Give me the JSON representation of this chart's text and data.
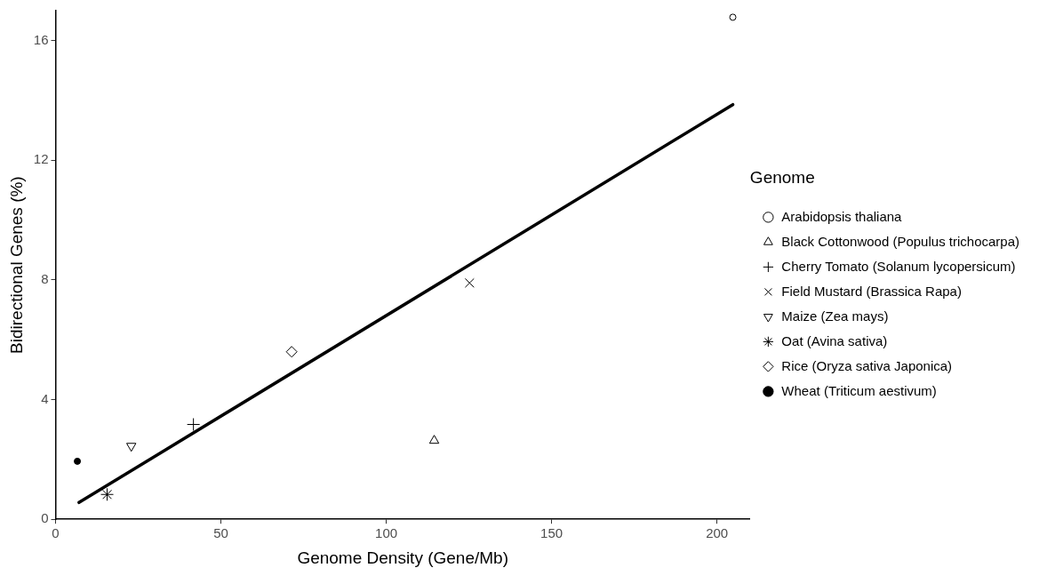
{
  "chart_data": {
    "type": "scatter",
    "xlabel": "Genome Density (Gene/Mb)",
    "ylabel": "Bidirectional Genes (%)",
    "legend_title": "Genome",
    "legend": "right",
    "grid": false,
    "xlim": [
      0,
      210
    ],
    "xticks": [
      0,
      50,
      100,
      150,
      200
    ],
    "ylim": [
      0,
      17
    ],
    "yticks": [
      0,
      4,
      8,
      12,
      16
    ],
    "series": [
      {
        "name": "Arabidopsis thaliana",
        "color": "#000000",
        "marker": "circle",
        "x": [
          204.8
        ],
        "values": [
          16.78
        ]
      },
      {
        "name": "Black Cottonwood (Populus trichocarpa)",
        "color": "#000000",
        "marker": "triangle",
        "x": [
          114.5
        ],
        "values": [
          2.63
        ]
      },
      {
        "name": "Cherry Tomato (Solanum lycopersicum)",
        "color": "#000000",
        "marker": "cross",
        "x": [
          41.7
        ],
        "values": [
          3.17
        ]
      },
      {
        "name": "Field Mustard (Brassica Rapa)",
        "color": "#000000",
        "marker": "x",
        "x": [
          125.2
        ],
        "values": [
          7.9
        ]
      },
      {
        "name": "Maize (Zea mays)",
        "color": "#000000",
        "marker": "triangle-down",
        "x": [
          22.9
        ],
        "values": [
          2.45
        ]
      },
      {
        "name": "Oat (Avina sativa)",
        "color": "#000000",
        "x": [
          15.6
        ],
        "values": [
          0.83
        ]
      },
      {
        "name": "Rice (Oryza sativa Japonica)",
        "color": "#000000",
        "marker": "diamond",
        "x": [
          71.4
        ],
        "values": [
          5.6
        ]
      },
      {
        "name": "Wheat (Triticum aestivum)",
        "color": "#000000",
        "marker": "filled-circle",
        "x": [
          6.6
        ],
        "values": [
          1.94
        ]
      },
      {
        "type": "line",
        "color": "#000000",
        "marker": "none",
        "line_style": "solid",
        "x": [
          7.1,
          204.8
        ],
        "values": [
          0.56,
          13.86
        ]
      }
    ]
  }
}
